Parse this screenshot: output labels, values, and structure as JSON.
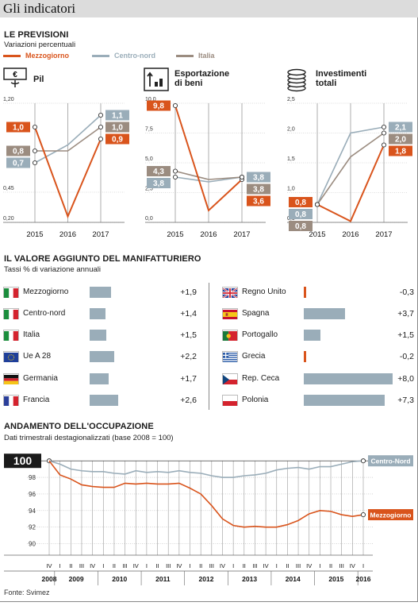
{
  "page_title": "Gli indicatori",
  "forecast": {
    "title": "LE PREVISIONI",
    "subtitle": "Variazioni percentuali",
    "legend": [
      {
        "name": "Mezzogiorno",
        "color": "#d9541c"
      },
      {
        "name": "Centro-nord",
        "color": "#9aadb9"
      },
      {
        "name": "Italia",
        "color": "#9b8c80"
      }
    ]
  },
  "chart_data": [
    {
      "type": "line",
      "title": "Pil",
      "icon": "euro-banknote-icon",
      "x": [
        "2015",
        "2016",
        "2017"
      ],
      "ylim": [
        0.2,
        1.2
      ],
      "y_ticks": [
        "1,20",
        "0,45",
        "0,20"
      ],
      "series": [
        {
          "name": "Mezzogiorno",
          "values": [
            1.0,
            0.25,
            0.9
          ],
          "labels": [
            "1,0",
            "",
            "0,9"
          ]
        },
        {
          "name": "Centro-nord",
          "values": [
            0.7,
            0.85,
            1.1
          ],
          "labels": [
            "0,7",
            "",
            "1,1"
          ]
        },
        {
          "name": "Italia",
          "values": [
            0.8,
            0.8,
            1.0
          ],
          "labels": [
            "0,8",
            "",
            "1,0"
          ]
        }
      ]
    },
    {
      "type": "line",
      "title": "Esportazione di beni",
      "icon": "export-chart-icon",
      "x": [
        "2015",
        "2016",
        "2017"
      ],
      "ylim": [
        0.0,
        10.0
      ],
      "y_ticks": [
        "10,0",
        "7,5",
        "5,0",
        "2,5",
        "0,0"
      ],
      "series": [
        {
          "name": "Mezzogiorno",
          "values": [
            9.8,
            1.0,
            3.6
          ],
          "labels": [
            "9,8",
            "",
            "3,6"
          ]
        },
        {
          "name": "Centro-nord",
          "values": [
            3.8,
            3.4,
            3.8
          ],
          "labels": [
            "3,8",
            "",
            "3,8"
          ]
        },
        {
          "name": "Italia",
          "values": [
            4.3,
            3.6,
            3.8
          ],
          "labels": [
            "4,3",
            "",
            "3,8"
          ]
        }
      ]
    },
    {
      "type": "line",
      "title": "Investimenti totali",
      "icon": "coin-stack-icon",
      "x": [
        "2015",
        "2016",
        "2017"
      ],
      "ylim": [
        0.5,
        2.5
      ],
      "y_ticks": [
        "2,5",
        "2,0",
        "1,5",
        "1,0",
        "0,5"
      ],
      "series": [
        {
          "name": "Mezzogiorno",
          "values": [
            0.8,
            0.52,
            1.8
          ],
          "labels": [
            "0,8",
            "",
            "1,8"
          ]
        },
        {
          "name": "Centro-nord",
          "values": [
            0.8,
            2.0,
            2.1
          ],
          "labels": [
            "0,8",
            "",
            "2,1"
          ]
        },
        {
          "name": "Italia",
          "values": [
            0.8,
            1.6,
            2.0
          ],
          "labels": [
            "0,8",
            "",
            "2,0"
          ]
        }
      ]
    },
    {
      "type": "bar",
      "title": "IL VALORE AGGIUNTO DEL MANIFATTURIERO",
      "subtitle": "Tassi % di variazione annuali",
      "categories": [
        "Mezzogiorno",
        "Centro-nord",
        "Italia",
        "Ue A 28",
        "Germania",
        "Francia",
        "Regno Unito",
        "Spagna",
        "Portogallo",
        "Grecia",
        "Rep. Ceca",
        "Polonia"
      ],
      "values": [
        1.9,
        1.4,
        1.5,
        2.2,
        1.7,
        2.6,
        -0.3,
        3.7,
        1.5,
        -0.2,
        8.0,
        7.3
      ],
      "labels": [
        "+1,9",
        "+1,4",
        "+1,5",
        "+2,2",
        "+1,7",
        "+2,6",
        "-0,3",
        "+3,7",
        "+1,5",
        "-0,2",
        "+8,0",
        "+7,3"
      ],
      "flags": [
        "italy-flag-icon",
        "italy-flag-icon",
        "italy-flag-icon",
        "eu-flag-icon",
        "germany-flag-icon",
        "france-flag-icon",
        "uk-flag-icon",
        "spain-flag-icon",
        "portugal-flag-icon",
        "greece-flag-icon",
        "czech-flag-icon",
        "poland-flag-icon"
      ]
    },
    {
      "type": "line",
      "title": "ANDAMENTO DELL'OCCUPAZIONE",
      "subtitle": "Dati trimestrali destagionalizzati (base 2008 = 100)",
      "base_label": "100",
      "ylim": [
        89,
        100.5
      ],
      "y_ticks": [
        "98",
        "96",
        "94",
        "92",
        "90"
      ],
      "quarters": [
        "IV",
        "I",
        "II",
        "III",
        "IV",
        "I",
        "II",
        "III",
        "IV",
        "I",
        "II",
        "III",
        "IV",
        "I",
        "II",
        "III",
        "IV",
        "I",
        "II",
        "III",
        "IV",
        "I",
        "II",
        "III",
        "IV",
        "I",
        "II",
        "III",
        "IV",
        "I"
      ],
      "years": [
        "2008",
        "2009",
        "2010",
        "2011",
        "2012",
        "2013",
        "2014",
        "2015",
        "2016"
      ],
      "series": [
        {
          "name": "Centro-Nord",
          "values": [
            100,
            99.6,
            99.0,
            98.8,
            98.7,
            98.7,
            98.5,
            98.4,
            98.8,
            98.6,
            98.7,
            98.6,
            98.8,
            98.6,
            98.5,
            98.2,
            98.0,
            98.0,
            98.2,
            98.3,
            98.5,
            98.9,
            99.1,
            99.2,
            99.0,
            99.3,
            99.3,
            99.6,
            99.9,
            100.0
          ]
        },
        {
          "name": "Mezzogiorno",
          "values": [
            100,
            98.3,
            97.8,
            97.1,
            96.9,
            96.8,
            96.8,
            97.3,
            97.2,
            97.3,
            97.2,
            97.2,
            97.3,
            96.7,
            96.0,
            94.6,
            93.0,
            92.2,
            92.0,
            92.1,
            92.0,
            92.0,
            92.3,
            92.8,
            93.6,
            94.0,
            93.9,
            93.5,
            93.3,
            93.5
          ]
        }
      ]
    }
  ],
  "footer": "Fonte: Svimez"
}
